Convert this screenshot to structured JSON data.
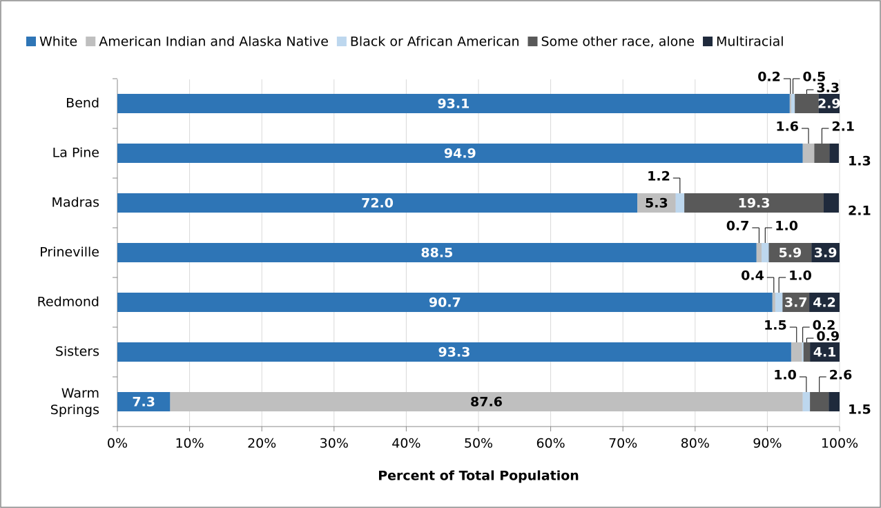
{
  "chart_data": {
    "type": "stacked-bar-horizontal",
    "categories": [
      "Bend",
      "La Pine",
      "Madras",
      "Prineville",
      "Redmond",
      "Sisters",
      "Warm Springs"
    ],
    "series": [
      {
        "name": "White",
        "color": "#2e75b6",
        "values": [
          93.1,
          94.9,
          72.0,
          88.5,
          90.7,
          93.3,
          7.3
        ],
        "value_labels": [
          "93.1",
          "94.9",
          "72.0",
          "88.5",
          "90.7",
          "93.3",
          "7.3"
        ]
      },
      {
        "name": "American Indian and Alaska Native",
        "color": "#bfbfbf",
        "values": [
          0.2,
          1.6,
          5.3,
          0.7,
          0.4,
          1.5,
          87.6
        ],
        "value_labels": [
          "0.2",
          "1.6",
          "5.3",
          "0.7",
          "0.4",
          "1.5",
          "87.6"
        ]
      },
      {
        "name": "Black or African American",
        "color": "#bdd7ee",
        "values": [
          0.5,
          0,
          1.2,
          1.0,
          1.0,
          0.2,
          1.0
        ],
        "value_labels": [
          "0.5",
          null,
          "1.2",
          "1.0",
          "1.0",
          "0.2",
          "1.0"
        ]
      },
      {
        "name": "Some other race, alone",
        "color": "#595959",
        "values": [
          3.3,
          2.1,
          19.3,
          5.9,
          3.7,
          0.9,
          2.6
        ],
        "value_labels": [
          "3.3",
          "2.1",
          "19.3",
          "5.9",
          "3.7",
          "0.9",
          "2.6"
        ]
      },
      {
        "name": "Multiracial",
        "color": "#1f2a3c",
        "values": [
          2.9,
          1.3,
          2.1,
          3.9,
          4.2,
          4.1,
          1.5
        ],
        "value_labels": [
          "2.9",
          "1.3",
          "2.1",
          "3.9",
          "4.2",
          "4.1",
          "1.5"
        ]
      }
    ],
    "xlabel": "Percent of Total Population",
    "xlim": [
      0,
      100
    ],
    "xticks": [
      {
        "value": 0,
        "label": "0%"
      },
      {
        "value": 10,
        "label": "10%"
      },
      {
        "value": 20,
        "label": "20%"
      },
      {
        "value": 30,
        "label": "30%"
      },
      {
        "value": 40,
        "label": "40%"
      },
      {
        "value": 50,
        "label": "50%"
      },
      {
        "value": 60,
        "label": "60%"
      },
      {
        "value": 70,
        "label": "70%"
      },
      {
        "value": 80,
        "label": "80%"
      },
      {
        "value": 90,
        "label": "90%"
      },
      {
        "value": 100,
        "label": "100%"
      }
    ],
    "grid": true,
    "legend": "top"
  }
}
